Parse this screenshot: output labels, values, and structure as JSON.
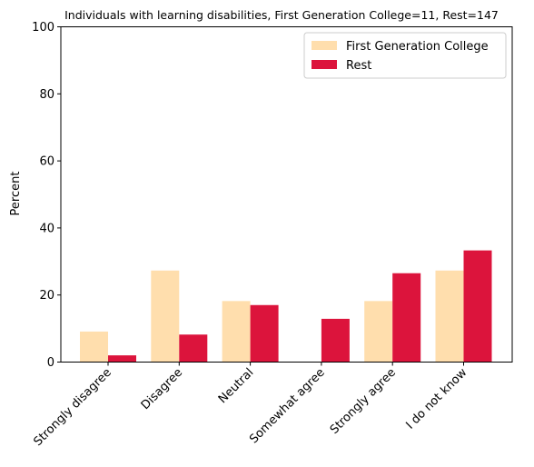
{
  "chart_data": {
    "type": "bar",
    "title": "Individuals with learning disabilities, First Generation College=11, Rest=147",
    "xlabel": "",
    "ylabel": "Percent",
    "ylim": [
      0,
      100
    ],
    "yticks": [
      0,
      20,
      40,
      60,
      80,
      100
    ],
    "categories": [
      "Strongly disagree",
      "Disagree",
      "Neutral",
      "Somewhat agree",
      "Strongly agree",
      "I do not know"
    ],
    "series": [
      {
        "name": "First Generation College",
        "color": "#FFDEAD",
        "values": [
          9.1,
          27.3,
          18.2,
          0,
          18.2,
          27.3
        ]
      },
      {
        "name": "Rest",
        "color": "#DC143C",
        "values": [
          2.0,
          8.2,
          17.0,
          12.9,
          26.5,
          33.3
        ]
      }
    ],
    "legend": "top-right",
    "grid": false
  }
}
